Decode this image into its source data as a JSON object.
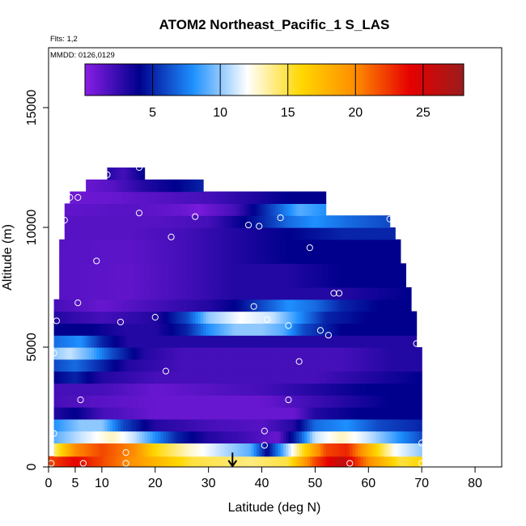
{
  "chart_data": {
    "type": "heatmap",
    "title": "ATOM2 Northeast_Pacific_1 S_LAS",
    "subtitle_flights": "Flts: 1,2",
    "subtitle_dates": "MMDD: 0126,0129",
    "xlabel": "Latitude (deg N)",
    "ylabel": "Altitude (m)",
    "xlim": [
      0,
      85
    ],
    "ylim": [
      0,
      17500
    ],
    "x_ticks": [
      0,
      5,
      10,
      20,
      30,
      40,
      50,
      60,
      70,
      80
    ],
    "y_ticks": [
      0,
      5000,
      10000,
      15000
    ],
    "colorbar": {
      "range": [
        0,
        28
      ],
      "ticks": [
        5,
        10,
        15,
        20,
        25
      ],
      "colors": [
        "#8a1ee6",
        "#00008c",
        "#1e90ff",
        "#ffffff",
        "#ffd700",
        "#ff8c00",
        "#e60000",
        "#9b1c1c"
      ]
    },
    "bands": [
      {
        "alt": [
          0,
          450
        ],
        "lat": [
          0,
          70
        ],
        "stops": [
          [
            0,
            22
          ],
          [
            5,
            24
          ],
          [
            15,
            20
          ],
          [
            22,
            17
          ],
          [
            27,
            15
          ],
          [
            38,
            14
          ],
          [
            45,
            15
          ],
          [
            50,
            22
          ],
          [
            55,
            26
          ],
          [
            60,
            20
          ],
          [
            66,
            15
          ],
          [
            70,
            16
          ]
        ]
      },
      {
        "alt": [
          450,
          1000
        ],
        "lat": [
          1,
          70
        ],
        "stops": [
          [
            1,
            14
          ],
          [
            5,
            20
          ],
          [
            10,
            22
          ],
          [
            16,
            20
          ],
          [
            20,
            16
          ],
          [
            26,
            13
          ],
          [
            32,
            11
          ],
          [
            38,
            9
          ],
          [
            41,
            4
          ],
          [
            44,
            9
          ],
          [
            48,
            16
          ],
          [
            52,
            22
          ],
          [
            56,
            23
          ],
          [
            60,
            18
          ],
          [
            65,
            12
          ],
          [
            70,
            10
          ]
        ]
      },
      {
        "alt": [
          1000,
          1500
        ],
        "lat": [
          1,
          70
        ],
        "stops": [
          [
            1,
            9
          ],
          [
            6,
            11
          ],
          [
            12,
            13
          ],
          [
            16,
            11
          ],
          [
            20,
            8
          ],
          [
            24,
            5
          ],
          [
            30,
            3
          ],
          [
            38,
            2
          ],
          [
            43,
            1
          ],
          [
            47,
            6
          ],
          [
            50,
            11
          ],
          [
            55,
            13
          ],
          [
            60,
            11
          ],
          [
            66,
            8
          ],
          [
            70,
            6
          ]
        ]
      },
      {
        "alt": [
          1500,
          2000
        ],
        "lat": [
          1,
          70
        ],
        "stops": [
          [
            1,
            8
          ],
          [
            6,
            10
          ],
          [
            10,
            10
          ],
          [
            14,
            6
          ],
          [
            20,
            3
          ],
          [
            30,
            2
          ],
          [
            40,
            1.5
          ],
          [
            46,
            3
          ],
          [
            50,
            7
          ],
          [
            56,
            8
          ],
          [
            62,
            6
          ],
          [
            70,
            5
          ]
        ]
      },
      {
        "alt": [
          2000,
          2500
        ],
        "lat": [
          1,
          70
        ],
        "stops": [
          [
            1,
            3
          ],
          [
            5,
            4
          ],
          [
            10,
            2
          ],
          [
            20,
            1
          ],
          [
            30,
            1
          ],
          [
            40,
            1
          ],
          [
            46,
            1
          ],
          [
            50,
            3
          ],
          [
            58,
            4
          ],
          [
            65,
            4
          ],
          [
            70,
            4
          ]
        ]
      },
      {
        "alt": [
          2500,
          3000
        ],
        "lat": [
          1,
          70
        ],
        "stops": [
          [
            1,
            2
          ],
          [
            8,
            1.5
          ],
          [
            20,
            1
          ],
          [
            30,
            1
          ],
          [
            40,
            1
          ],
          [
            48,
            2
          ],
          [
            56,
            3
          ],
          [
            64,
            4
          ],
          [
            70,
            4
          ]
        ]
      },
      {
        "alt": [
          3000,
          3500
        ],
        "lat": [
          1,
          70
        ],
        "stops": [
          [
            1,
            2
          ],
          [
            10,
            2
          ],
          [
            20,
            1
          ],
          [
            30,
            1.5
          ],
          [
            40,
            2
          ],
          [
            50,
            3
          ],
          [
            60,
            4
          ],
          [
            70,
            4
          ]
        ]
      },
      {
        "alt": [
          3500,
          4000
        ],
        "lat": [
          1,
          70
        ],
        "stops": [
          [
            1,
            4
          ],
          [
            5,
            5
          ],
          [
            10,
            3
          ],
          [
            20,
            2
          ],
          [
            30,
            2
          ],
          [
            40,
            2
          ],
          [
            50,
            2
          ],
          [
            60,
            3
          ],
          [
            70,
            4
          ]
        ]
      },
      {
        "alt": [
          4000,
          4500
        ],
        "lat": [
          1,
          70
        ],
        "stops": [
          [
            1,
            6
          ],
          [
            5,
            7
          ],
          [
            10,
            5
          ],
          [
            15,
            3
          ],
          [
            25,
            2
          ],
          [
            35,
            2
          ],
          [
            45,
            2
          ],
          [
            55,
            2
          ],
          [
            65,
            3
          ],
          [
            70,
            3
          ]
        ]
      },
      {
        "alt": [
          4500,
          5000
        ],
        "lat": [
          1,
          70
        ],
        "stops": [
          [
            1,
            10
          ],
          [
            4,
            11
          ],
          [
            8,
            9
          ],
          [
            12,
            6
          ],
          [
            18,
            3
          ],
          [
            25,
            2
          ],
          [
            35,
            2
          ],
          [
            45,
            2
          ],
          [
            55,
            2
          ],
          [
            65,
            3
          ],
          [
            70,
            3
          ]
        ]
      },
      {
        "alt": [
          5000,
          5500
        ],
        "lat": [
          1,
          69
        ],
        "stops": [
          [
            1,
            7
          ],
          [
            6,
            8
          ],
          [
            10,
            5
          ],
          [
            15,
            3
          ],
          [
            20,
            3
          ],
          [
            30,
            3
          ],
          [
            40,
            3
          ],
          [
            50,
            3
          ],
          [
            60,
            3
          ],
          [
            69,
            3
          ]
        ]
      },
      {
        "alt": [
          5500,
          6000
        ],
        "lat": [
          1,
          69
        ],
        "stops": [
          [
            1,
            4
          ],
          [
            8,
            4
          ],
          [
            14,
            3
          ],
          [
            20,
            3
          ],
          [
            26,
            5
          ],
          [
            30,
            8
          ],
          [
            35,
            10
          ],
          [
            40,
            10
          ],
          [
            44,
            9
          ],
          [
            48,
            6
          ],
          [
            55,
            4
          ],
          [
            62,
            4
          ],
          [
            69,
            4
          ]
        ]
      },
      {
        "alt": [
          6000,
          6500
        ],
        "lat": [
          1,
          69
        ],
        "stops": [
          [
            1,
            3
          ],
          [
            10,
            2
          ],
          [
            20,
            3
          ],
          [
            26,
            6
          ],
          [
            30,
            10
          ],
          [
            36,
            12
          ],
          [
            42,
            11
          ],
          [
            47,
            8
          ],
          [
            52,
            5
          ],
          [
            60,
            4
          ],
          [
            69,
            4
          ]
        ]
      },
      {
        "alt": [
          6500,
          7000
        ],
        "lat": [
          1,
          68
        ],
        "stops": [
          [
            1,
            2
          ],
          [
            10,
            1
          ],
          [
            20,
            2
          ],
          [
            30,
            3
          ],
          [
            35,
            4
          ],
          [
            40,
            6
          ],
          [
            45,
            8
          ],
          [
            50,
            7
          ],
          [
            55,
            5
          ],
          [
            62,
            4
          ],
          [
            68,
            4
          ]
        ]
      },
      {
        "alt": [
          7000,
          7500
        ],
        "lat": [
          2,
          68
        ],
        "stops": [
          [
            2,
            1.5
          ],
          [
            15,
            1.2
          ],
          [
            25,
            2
          ],
          [
            35,
            3
          ],
          [
            45,
            3
          ],
          [
            55,
            3
          ],
          [
            68,
            4
          ]
        ]
      },
      {
        "alt": [
          7500,
          8500
        ],
        "lat": [
          2,
          67
        ],
        "stops": [
          [
            2,
            1.5
          ],
          [
            15,
            1.2
          ],
          [
            25,
            2
          ],
          [
            35,
            3
          ],
          [
            45,
            3
          ],
          [
            55,
            4
          ],
          [
            67,
            4
          ]
        ]
      },
      {
        "alt": [
          8500,
          9500
        ],
        "lat": [
          2,
          66
        ],
        "stops": [
          [
            2,
            1.5
          ],
          [
            15,
            1.3
          ],
          [
            25,
            2
          ],
          [
            35,
            3
          ],
          [
            45,
            4
          ],
          [
            55,
            4
          ],
          [
            66,
            4
          ]
        ]
      },
      {
        "alt": [
          9500,
          10000
        ],
        "lat": [
          3,
          65
        ],
        "stops": [
          [
            3,
            1.5
          ],
          [
            15,
            1.5
          ],
          [
            25,
            2
          ],
          [
            35,
            3
          ],
          [
            45,
            4
          ],
          [
            55,
            5
          ],
          [
            65,
            5
          ]
        ]
      },
      {
        "alt": [
          10000,
          10500
        ],
        "lat": [
          3,
          64
        ],
        "stops": [
          [
            3,
            1.5
          ],
          [
            20,
            1.5
          ],
          [
            30,
            2
          ],
          [
            40,
            5
          ],
          [
            45,
            7
          ],
          [
            50,
            8
          ],
          [
            56,
            7
          ],
          [
            64,
            6
          ]
        ]
      },
      {
        "alt": [
          10500,
          11000
        ],
        "lat": [
          3,
          52
        ],
        "stops": [
          [
            3,
            1.2
          ],
          [
            15,
            1.5
          ],
          [
            25,
            1
          ],
          [
            28,
            0.5
          ],
          [
            35,
            2
          ],
          [
            42,
            6
          ],
          [
            47,
            9
          ],
          [
            52,
            8
          ]
        ]
      },
      {
        "alt": [
          11000,
          11500
        ],
        "lat": [
          4,
          52
        ],
        "stops": [
          [
            4,
            0.8
          ],
          [
            12,
            1
          ],
          [
            20,
            1.5
          ],
          [
            30,
            2
          ],
          [
            38,
            3
          ],
          [
            45,
            4
          ],
          [
            52,
            4
          ]
        ]
      },
      {
        "alt": [
          11500,
          12000
        ],
        "lat": [
          7,
          29
        ],
        "stops": [
          [
            7,
            1
          ],
          [
            12,
            1.5
          ],
          [
            18,
            3
          ],
          [
            24,
            4
          ],
          [
            29,
            5
          ]
        ]
      },
      {
        "alt": [
          12000,
          12500
        ],
        "lat": [
          11,
          18
        ],
        "stops": [
          [
            11,
            3
          ],
          [
            14,
            2
          ],
          [
            18,
            4
          ]
        ]
      }
    ],
    "points": [
      [
        0.5,
        150
      ],
      [
        6.5,
        150
      ],
      [
        14.5,
        150
      ],
      [
        56.5,
        150
      ],
      [
        70,
        150
      ],
      [
        14.5,
        600
      ],
      [
        40.5,
        900
      ],
      [
        70,
        1000
      ],
      [
        1,
        1400
      ],
      [
        40.5,
        1500
      ],
      [
        6,
        2800
      ],
      [
        45,
        2800
      ],
      [
        22,
        4000
      ],
      [
        47,
        4400
      ],
      [
        1,
        4750
      ],
      [
        69,
        5150
      ],
      [
        52.5,
        5500
      ],
      [
        51,
        5700
      ],
      [
        45,
        5900
      ],
      [
        13.5,
        6050
      ],
      [
        41,
        6150
      ],
      [
        20,
        6250
      ],
      [
        1.5,
        6100
      ],
      [
        38.5,
        6700
      ],
      [
        5.5,
        6850
      ],
      [
        53.5,
        7250
      ],
      [
        54.5,
        7250
      ],
      [
        9,
        8600
      ],
      [
        49,
        9150
      ],
      [
        23,
        9600
      ],
      [
        37.5,
        10100
      ],
      [
        39.5,
        10050
      ],
      [
        3,
        10300
      ],
      [
        64,
        10350
      ],
      [
        27.5,
        10450
      ],
      [
        43.5,
        10400
      ],
      [
        17,
        10600
      ],
      [
        4,
        11250
      ],
      [
        5.5,
        11250
      ],
      [
        11,
        12200
      ],
      [
        17,
        12500
      ]
    ],
    "arrow_lat": 34.5
  }
}
